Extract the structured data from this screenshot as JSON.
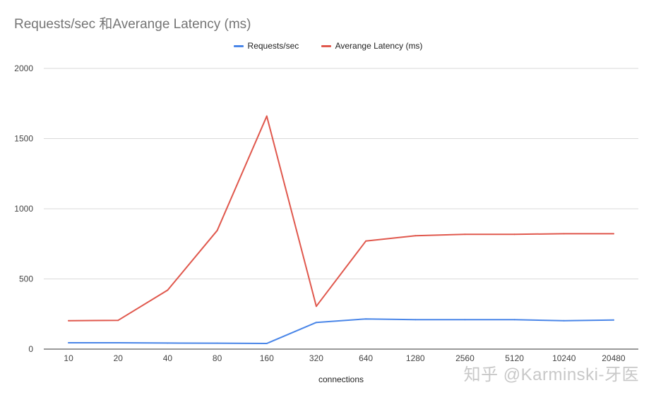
{
  "chart_data": {
    "type": "line",
    "title": "Requests/sec 和Averange Latency (ms)",
    "xlabel": "connections",
    "ylabel": "",
    "categories": [
      "10",
      "20",
      "40",
      "80",
      "160",
      "320",
      "640",
      "1280",
      "2560",
      "5120",
      "10240",
      "20480"
    ],
    "ylim": [
      0,
      2000
    ],
    "yticks": [
      0,
      500,
      1000,
      1500,
      2000
    ],
    "grid": true,
    "legend_position": "top",
    "series": [
      {
        "name": "Requests/sec",
        "color": "#4a86e8",
        "values": [
          45,
          45,
          43,
          42,
          40,
          190,
          215,
          210,
          210,
          210,
          202,
          207
        ]
      },
      {
        "name": "Averange Latency (ms)",
        "color": "#e0584d",
        "values": [
          202,
          205,
          420,
          845,
          1660,
          305,
          770,
          808,
          818,
          818,
          822,
          822
        ]
      }
    ]
  },
  "watermark": "知乎 @Karminski-牙医"
}
